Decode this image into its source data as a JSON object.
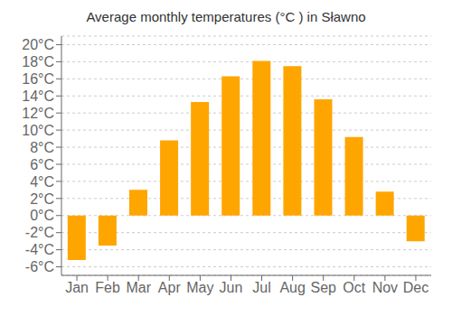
{
  "chart_data": {
    "type": "bar",
    "title": "Average monthly temperatures (°C ) in Sławno",
    "categories": [
      "Jan",
      "Feb",
      "Mar",
      "Apr",
      "May",
      "Jun",
      "Jul",
      "Aug",
      "Sep",
      "Oct",
      "Nov",
      "Dec"
    ],
    "values": [
      -5.2,
      -3.5,
      3.0,
      8.8,
      13.3,
      16.3,
      18.1,
      17.5,
      13.6,
      9.2,
      2.8,
      -3.0
    ],
    "color": "#FFA500",
    "ylim": [
      -7,
      21
    ],
    "yticks": [
      {
        "value": -6,
        "label": "-6°C"
      },
      {
        "value": -4,
        "label": "-4°C"
      },
      {
        "value": -2,
        "label": "-2°C"
      },
      {
        "value": 0,
        "label": "0°C"
      },
      {
        "value": 2,
        "label": "2°C"
      },
      {
        "value": 4,
        "label": "4°C"
      },
      {
        "value": 6,
        "label": "6°C"
      },
      {
        "value": 8,
        "label": "8°C"
      },
      {
        "value": 10,
        "label": "10°C"
      },
      {
        "value": 12,
        "label": "12°C"
      },
      {
        "value": 14,
        "label": "14°C"
      },
      {
        "value": 16,
        "label": "16°C"
      },
      {
        "value": 18,
        "label": "18°C"
      },
      {
        "value": 20,
        "label": "20°C"
      }
    ],
    "grid": true
  }
}
